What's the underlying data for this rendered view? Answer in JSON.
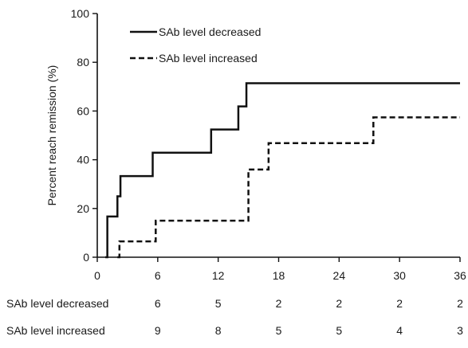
{
  "chart_data": {
    "type": "line",
    "step": true,
    "title": "",
    "xlabel": "",
    "ylabel": "Percent reach remission (%)",
    "xlim": [
      0,
      36
    ],
    "ylim": [
      0,
      100
    ],
    "xticks": [
      0,
      6,
      12,
      18,
      24,
      30,
      36
    ],
    "yticks": [
      0,
      20,
      40,
      60,
      80,
      100
    ],
    "grid": false,
    "legend_position": "top-left",
    "series": [
      {
        "name": "SAb level decreased",
        "style": "solid",
        "color": "#111111",
        "x": [
          0.8,
          1.0,
          1.9,
          2.0,
          2.3,
          5.3,
          5.5,
          11.1,
          11.3,
          13.8,
          14.0,
          14.6,
          14.8,
          36
        ],
        "y": [
          0,
          16.7,
          16.7,
          25,
          33.3,
          33.3,
          42.9,
          42.9,
          52.4,
          52.4,
          61.9,
          61.9,
          71.4,
          71.4
        ]
      },
      {
        "name": "SAb level increased",
        "style": "dashed",
        "color": "#111111",
        "x": [
          2.0,
          2.2,
          5.6,
          5.8,
          14.8,
          15.0,
          16.8,
          17.0,
          27.2,
          27.4,
          36
        ],
        "y": [
          0,
          6.5,
          6.5,
          15,
          15,
          36,
          36,
          46.8,
          46.8,
          57.4,
          57.4
        ]
      }
    ],
    "risk_table": {
      "times": [
        6,
        12,
        18,
        24,
        30,
        36
      ],
      "rows": [
        {
          "label": "SAb level decreased",
          "values": [
            6,
            5,
            2,
            2,
            2,
            2
          ]
        },
        {
          "label": "SAb level increased",
          "values": [
            9,
            8,
            5,
            5,
            4,
            3
          ]
        }
      ]
    }
  }
}
